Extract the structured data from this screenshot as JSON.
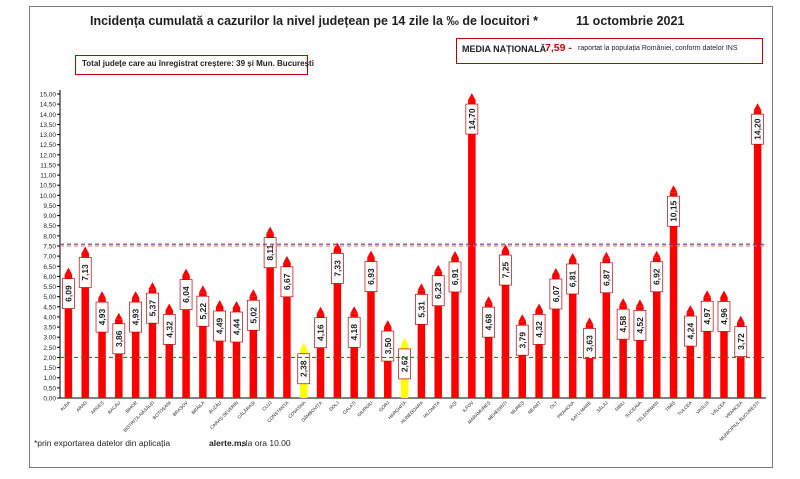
{
  "header": {
    "title": "Incidența cumulată a cazurilor la nivel județean pe 14 zile la ‰ de locuitori *",
    "date": "11 octombrie 2021"
  },
  "info": {
    "counties_increase": "Total județe care au înregistrat creștere:  39 și Mun. București"
  },
  "national_average": {
    "label": "MEDIA NAȚIONALĂ",
    "value_text": "7,59 -",
    "note": "raportat la populația României, conform datelor INS"
  },
  "footnote": {
    "prefix": "*prin exportarea datelor din aplicația",
    "app": "alerte.ms",
    "suffix": ", la ora 10.00"
  },
  "colors": {
    "bar": "#ff0000",
    "bar_low": "#ffff00",
    "national_line": "#5b3fa8",
    "threshold_red": "#ff6666",
    "threshold_green": "#1a8a1a",
    "axis": "#000000"
  },
  "chart_data": {
    "type": "bar",
    "title": "Incidența cumulată a cazurilor la nivel județean pe 14 zile la ‰ de locuitori *",
    "categories": [
      "ALBA",
      "ARAD",
      "ARGEȘ",
      "BACĂU",
      "BIHOR",
      "BISTRIȚA-NĂSĂUD",
      "BOTOȘANI",
      "BRAȘOV",
      "BRĂILA",
      "BUZĂU",
      "CARAȘ-SEVERIN",
      "CĂLĂRAȘI",
      "CLUJ",
      "CONSTANȚA",
      "COVASNA",
      "DÂMBOVIȚA",
      "DOLJ",
      "GALAȚI",
      "GIURGIU",
      "GORJ",
      "HARGHITA",
      "HUNEDOARA",
      "IALOMIȚA",
      "IAȘI",
      "ILFOV",
      "MARAMUREȘ",
      "MEHEDINȚI",
      "MUREȘ",
      "NEAMȚ",
      "OLT",
      "PRAHOVA",
      "SATU MARE",
      "SĂLAJ",
      "SIBIU",
      "SUCEAVA",
      "TELEORMAN",
      "TIMIȘ",
      "TULCEA",
      "VASLUI",
      "VÂLCEA",
      "VRANCEA",
      "MUNICIPIUL BUCUREȘTI"
    ],
    "values": [
      6.09,
      7.13,
      4.93,
      3.86,
      4.93,
      5.37,
      4.32,
      6.04,
      5.22,
      4.49,
      4.44,
      5.02,
      8.11,
      6.67,
      2.38,
      4.16,
      7.33,
      4.18,
      6.93,
      3.5,
      2.62,
      5.31,
      6.23,
      6.91,
      14.7,
      4.68,
      7.25,
      3.79,
      4.32,
      6.07,
      6.81,
      3.63,
      6.87,
      4.58,
      4.52,
      6.92,
      10.15,
      4.24,
      4.97,
      4.96,
      3.72,
      14.2
    ],
    "value_labels": [
      "6,09",
      "7,13",
      "4,93",
      "3,86",
      "4,93",
      "5,37",
      "4,32",
      "6,04",
      "5,22",
      "4,49",
      "4,44",
      "5,02",
      "8,11",
      "6,67",
      "2,38",
      "4,16",
      "7,33",
      "4,18",
      "6,93",
      "3,50",
      "2,62",
      "5,31",
      "6,23",
      "6,91",
      "14,70",
      "4,68",
      "7,25",
      "3,79",
      "4,32",
      "6,07",
      "6,81",
      "3,63",
      "6,87",
      "4,58",
      "4,52",
      "6,92",
      "10,15",
      "4,24",
      "4,97",
      "4,96",
      "3,72",
      "14,20"
    ],
    "y_ticks": [
      "0,00",
      "0,50",
      "1,00",
      "1,50",
      "2,00",
      "2,50",
      "3,00",
      "3,50",
      "4,00",
      "4,50",
      "5,00",
      "5,50",
      "6,00",
      "6,50",
      "7,00",
      "7,50",
      "8,00",
      "8,50",
      "9,00",
      "9,50",
      "10,00",
      "10,50",
      "11,00",
      "11,50",
      "12,00",
      "12,50",
      "13,00",
      "13,50",
      "14,00",
      "14,50",
      "15,00"
    ],
    "ylim": [
      0,
      15
    ],
    "reference_lines": [
      {
        "value": 7.59,
        "style": "dashed",
        "color": "#5b3fa8"
      },
      {
        "value": 7.5,
        "style": "dashed",
        "color": "#ff6666"
      },
      {
        "value": 2.0,
        "style": "dashed",
        "color": "#1a8a1a"
      }
    ],
    "highlight_below": 3,
    "grid": false,
    "legend": "none"
  }
}
